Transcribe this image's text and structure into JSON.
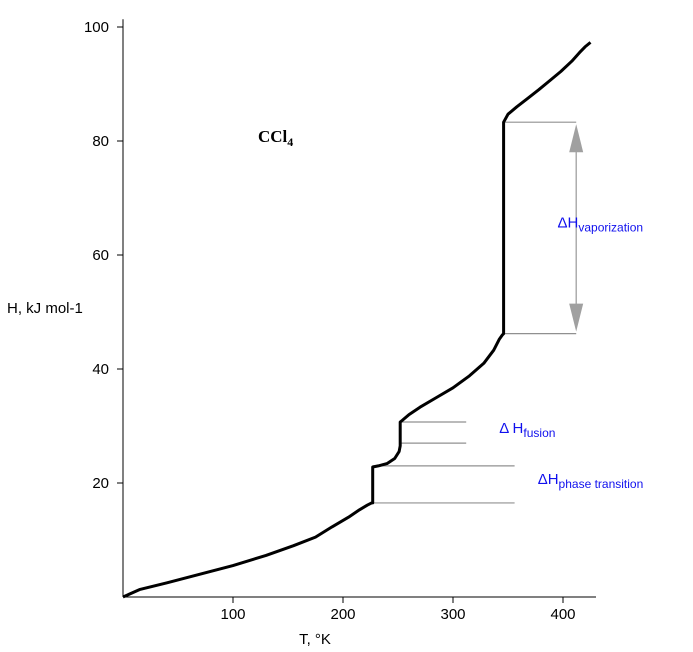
{
  "chart_data": {
    "type": "line",
    "title": "",
    "compound_label": {
      "main": "CCl",
      "sub": "4"
    },
    "xlabel": "T, °K",
    "ylabel": "H, kJ mol-1",
    "xlim": [
      0,
      430
    ],
    "ylim": [
      0,
      101
    ],
    "x_ticks": [
      100,
      200,
      300,
      400
    ],
    "y_ticks": [
      20,
      40,
      60,
      80,
      100
    ],
    "grid": false,
    "series": [
      {
        "x": [
          0,
          15,
          40,
          70,
          100,
          130,
          155,
          175,
          190,
          205,
          215,
          222,
          226,
          227,
          227,
          232,
          240,
          247,
          251,
          252,
          252,
          254,
          260,
          270,
          285,
          300,
          315,
          328,
          337,
          342,
          345,
          346,
          346,
          350,
          358,
          368,
          378,
          388,
          398,
          408,
          415,
          420,
          425
        ],
        "y": [
          0,
          1.3,
          2.5,
          4.0,
          5.5,
          7.3,
          9.0,
          10.5,
          12.3,
          14.0,
          15.3,
          16.1,
          16.5,
          16.5,
          22.8,
          23.0,
          23.4,
          24.3,
          25.5,
          26.5,
          30.7,
          31.0,
          32.0,
          33.3,
          35.0,
          36.7,
          38.8,
          41.0,
          43.3,
          45.2,
          46.0,
          46.2,
          83.3,
          84.7,
          86.0,
          87.5,
          89.0,
          90.6,
          92.2,
          94.0,
          95.5,
          96.5,
          97.3
        ]
      }
    ],
    "reference_lines": [
      {
        "y": 83.3,
        "x_start": 346,
        "x_end": 412
      },
      {
        "y": 46.2,
        "x_start": 346,
        "x_end": 412
      },
      {
        "y": 30.7,
        "x_start": 252,
        "x_end": 312
      },
      {
        "y": 27.0,
        "x_start": 252,
        "x_end": 312
      },
      {
        "y": 23.0,
        "x_start": 227,
        "x_end": 356
      },
      {
        "y": 16.5,
        "x_start": 227,
        "x_end": 356
      }
    ],
    "arrow": {
      "x": 412,
      "y_top": 83.3,
      "y_bottom": 46.2,
      "direction": "both"
    },
    "annotations": [
      {
        "prefix": "ΔH",
        "sub": "vaporization",
        "x": 395,
        "y": 64.8
      },
      {
        "prefix": "Δ H",
        "sub": "fusion",
        "x": 342,
        "y": 28.8
      },
      {
        "prefix": "ΔH",
        "sub": "phase transition",
        "x": 377,
        "y": 19.8
      }
    ],
    "colors": {
      "curve": "#000000",
      "axis": "#000000",
      "reference_line": "#909090",
      "arrow": "#a0a0a0",
      "annotation": "#1010ee"
    }
  }
}
